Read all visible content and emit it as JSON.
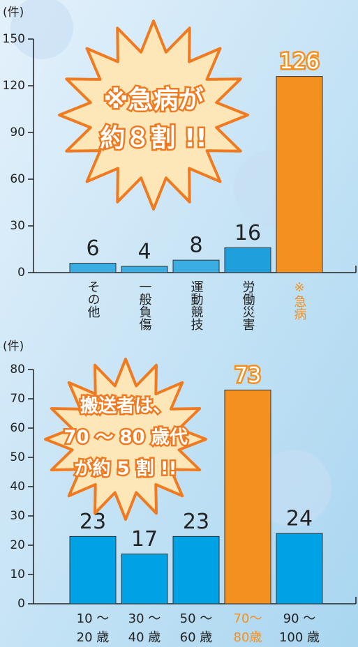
{
  "chart_data": [
    {
      "type": "bar",
      "y_label": "(件)",
      "categories": [
        "その他",
        "一般負傷",
        "運動競技",
        "労働災害",
        "※急病"
      ],
      "values": [
        6,
        4,
        8,
        16,
        126
      ],
      "colors": [
        "#3aade3",
        "#3aade3",
        "#3aade3",
        "#1f9fdc",
        "#f39020"
      ],
      "label_colors": [
        "#222222",
        "#222222",
        "#222222",
        "#222222",
        "#f39020"
      ],
      "ylim": [
        0,
        150
      ],
      "yticks": [
        0,
        30,
        60,
        90,
        120,
        150
      ],
      "annotation": [
        "※急病が",
        "約８割 !!"
      ]
    },
    {
      "type": "bar",
      "y_label": "(件)",
      "categories": [
        [
          "10 〜",
          "20 歳"
        ],
        [
          "30 〜",
          "40 歳"
        ],
        [
          "50 〜",
          "60 歳"
        ],
        [
          "70〜",
          "80歳"
        ],
        [
          "90 〜",
          "100 歳"
        ]
      ],
      "values": [
        23,
        17,
        23,
        73,
        24
      ],
      "colors": [
        "#00a2e6",
        "#00a2e6",
        "#00a2e6",
        "#f39020",
        "#00a2e6"
      ],
      "label_colors": [
        "#222222",
        "#222222",
        "#222222",
        "#f39020",
        "#222222"
      ],
      "ylim": [
        0,
        80
      ],
      "yticks": [
        0,
        10,
        20,
        30,
        40,
        50,
        60,
        70,
        80
      ],
      "annotation": [
        "搬送者は、",
        "70 〜 80 歳代",
        "が約 5 割 !!"
      ]
    }
  ]
}
